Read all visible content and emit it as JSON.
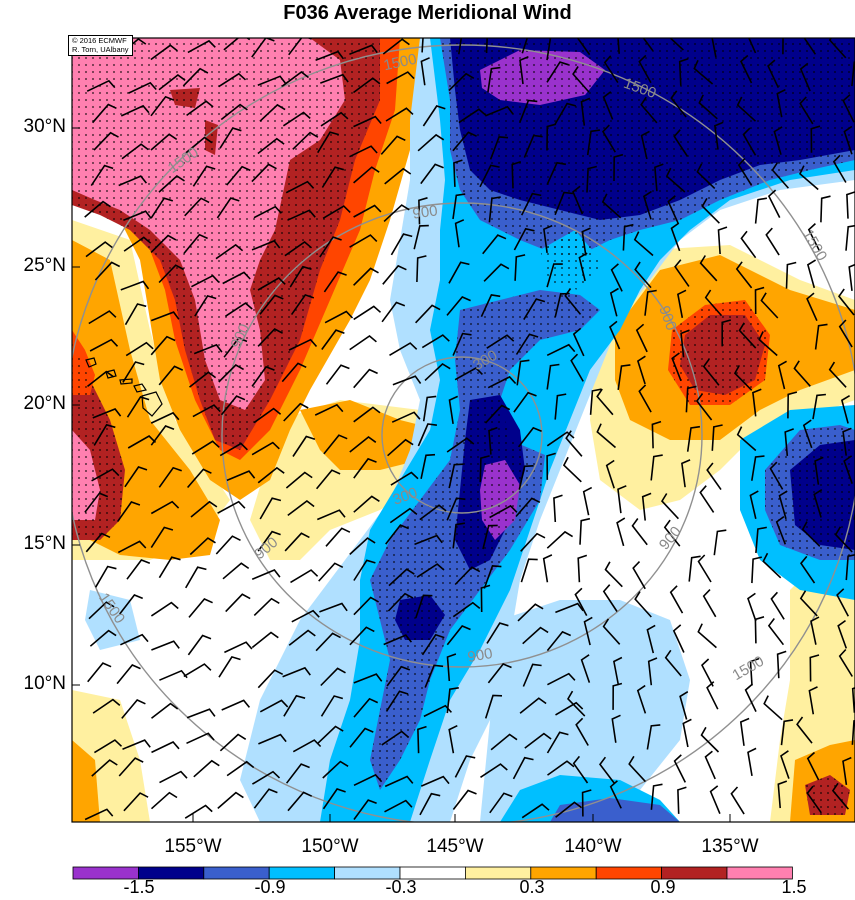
{
  "title": "F036 Average Meridional Wind",
  "credit": [
    "© 2016 ECMWF",
    "R. Torn, UAlbany"
  ],
  "lat_labels": [
    "30°N",
    "25°N",
    "20°N",
    "15°N",
    "10°N"
  ],
  "lon_labels": [
    "155°W",
    "150°W",
    "145°W",
    "140°W",
    "135°W"
  ],
  "colorbar": {
    "colors": [
      "#9a32cd",
      "#00008b",
      "#3a5fcd",
      "#00bfff",
      "#b0e0ff",
      "#ffffff",
      "#fff0a0",
      "#ffa500",
      "#ff4500",
      "#b22222",
      "#ff80b0"
    ],
    "labels": [
      "-1.5",
      "-0.9",
      "-0.3",
      "0.3",
      "0.9",
      "1.5"
    ]
  },
  "contour_labels": [
    "1500",
    "1500",
    "1500",
    "1500",
    "1500",
    "1500",
    "900",
    "900",
    "900",
    "900",
    "900",
    "900",
    "300",
    "300"
  ],
  "shading_colors": {
    "pink": "#ff80b0",
    "darkred": "#b22222",
    "red": "#ff4500",
    "orange": "#ffa500",
    "yellow": "#fff0a0",
    "lightblue": "#b0e0ff",
    "cyan": "#00bfff",
    "royal": "#3a5fcd",
    "navy": "#00008b",
    "purple": "#9a32cd"
  }
}
